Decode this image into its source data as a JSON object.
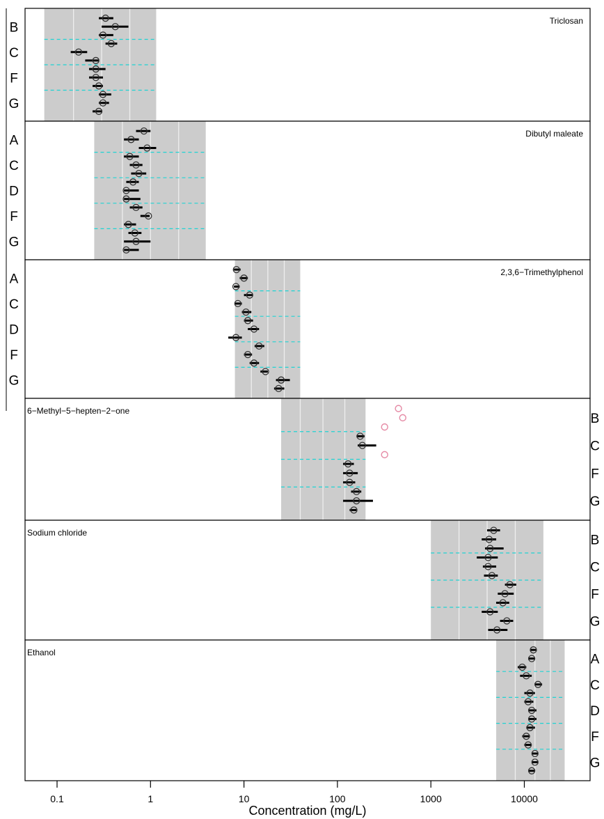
{
  "chart_data": {
    "type": "scatter",
    "x_axis": {
      "label": "Concentration (mg/L)",
      "scale": "log",
      "range": [
        0.035,
        50000
      ],
      "ticks": [
        0.1,
        1,
        10,
        100,
        1000,
        10000
      ],
      "tick_labels": [
        "0.1",
        "1",
        "10",
        "100",
        "1000",
        "10000"
      ]
    },
    "colors": {
      "shade": "#cccccc",
      "dashed_line": "#1fd3d3",
      "point": "#333333",
      "outlier": "#e58aa5",
      "frame": "#000000"
    },
    "panels": [
      {
        "title": "Triclosan",
        "title_position": "top-right",
        "label_side": "left",
        "labels": [
          "B",
          "C",
          "F",
          "G"
        ],
        "shaded_range": [
          0.073,
          1.15
        ],
        "white_lines": [
          0.15,
          0.3,
          0.6
        ],
        "points": [
          {
            "value": 0.33,
            "low": 0.28,
            "high": 0.4
          },
          {
            "value": 0.42,
            "low": 0.3,
            "high": 0.58
          },
          {
            "value": 0.31,
            "low": 0.28,
            "high": 0.4
          },
          {
            "value": 0.38,
            "low": 0.33,
            "high": 0.44
          },
          {
            "value": 0.17,
            "low": 0.14,
            "high": 0.21
          },
          {
            "value": 0.26,
            "low": 0.2,
            "high": 0.28
          },
          {
            "value": 0.26,
            "low": 0.22,
            "high": 0.33
          },
          {
            "value": 0.26,
            "low": 0.22,
            "high": 0.31
          },
          {
            "value": 0.28,
            "low": 0.24,
            "high": 0.31
          },
          {
            "value": 0.31,
            "low": 0.28,
            "high": 0.38
          },
          {
            "value": 0.31,
            "low": 0.28,
            "high": 0.36
          },
          {
            "value": 0.28,
            "low": 0.24,
            "high": 0.3
          }
        ],
        "outliers": []
      },
      {
        "title": "Dibutyl maleate",
        "title_position": "top-right",
        "label_side": "left",
        "labels": [
          "A",
          "C",
          "D",
          "F",
          "G"
        ],
        "shaded_range": [
          0.25,
          3.9
        ],
        "white_lines": [
          0.5,
          1.0,
          2.0
        ],
        "points": [
          {
            "value": 0.85,
            "low": 0.7,
            "high": 1.0
          },
          {
            "value": 0.62,
            "low": 0.52,
            "high": 0.75
          },
          {
            "value": 0.92,
            "low": 0.75,
            "high": 1.15
          },
          {
            "value": 0.6,
            "low": 0.52,
            "high": 0.75
          },
          {
            "value": 0.7,
            "low": 0.6,
            "high": 0.82
          },
          {
            "value": 0.75,
            "low": 0.62,
            "high": 0.9
          },
          {
            "value": 0.65,
            "low": 0.55,
            "high": 0.75
          },
          {
            "value": 0.55,
            "low": 0.52,
            "high": 0.75
          },
          {
            "value": 0.55,
            "low": 0.52,
            "high": 0.78
          },
          {
            "value": 0.7,
            "low": 0.6,
            "high": 0.82
          },
          {
            "value": 0.95,
            "low": 0.78,
            "high": 0.98
          },
          {
            "value": 0.58,
            "low": 0.52,
            "high": 0.7
          },
          {
            "value": 0.68,
            "low": 0.58,
            "high": 0.8
          },
          {
            "value": 0.7,
            "low": 0.52,
            "high": 1.0
          },
          {
            "value": 0.55,
            "low": 0.52,
            "high": 0.75
          }
        ],
        "outliers": []
      },
      {
        "title": "2,3,6−Trimethylphenol",
        "title_position": "top-right",
        "label_side": "left",
        "labels": [
          "A",
          "C",
          "D",
          "F",
          "G"
        ],
        "shaded_range": [
          8.0,
          40.0
        ],
        "white_lines": [
          12.0,
          18.0,
          27.0
        ],
        "points": [
          {
            "value": 8.3,
            "low": 7.8,
            "high": 9.2
          },
          {
            "value": 10.0,
            "low": 9.0,
            "high": 11.0
          },
          {
            "value": 8.2,
            "low": 7.8,
            "high": 9.0
          },
          {
            "value": 11.5,
            "low": 10.0,
            "high": 12.5
          },
          {
            "value": 8.6,
            "low": 8.0,
            "high": 9.5
          },
          {
            "value": 10.5,
            "low": 9.5,
            "high": 12.0
          },
          {
            "value": 11.0,
            "low": 10.0,
            "high": 12.5
          },
          {
            "value": 12.8,
            "low": 11.0,
            "high": 14.5
          },
          {
            "value": 8.2,
            "low": 6.8,
            "high": 9.5
          },
          {
            "value": 14.5,
            "low": 13.0,
            "high": 16.5
          },
          {
            "value": 11.0,
            "low": 10.0,
            "high": 12.2
          },
          {
            "value": 12.8,
            "low": 11.5,
            "high": 14.5
          },
          {
            "value": 17.0,
            "low": 15.0,
            "high": 18.0
          },
          {
            "value": 25.0,
            "low": 22.0,
            "high": 31.0
          },
          {
            "value": 23.5,
            "low": 21.0,
            "high": 27.0
          }
        ],
        "outliers": []
      },
      {
        "title": "6−Methyl−5−hepten−2−one",
        "title_position": "top-left",
        "label_side": "right",
        "labels": [
          "B",
          "C",
          "F",
          "G"
        ],
        "shaded_range": [
          25.0,
          200.0
        ],
        "white_lines": [
          40.0,
          70.0,
          120.0
        ],
        "points": [
          {
            "value": 450,
            "low": 450,
            "high": 450,
            "outlier": true
          },
          {
            "value": 500,
            "low": 500,
            "high": 500,
            "outlier": true
          },
          {
            "value": 320,
            "low": 320,
            "high": 320,
            "outlier": true
          },
          {
            "value": 175,
            "low": 160,
            "high": 195
          },
          {
            "value": 185,
            "low": 165,
            "high": 260
          },
          {
            "value": 320,
            "low": 320,
            "high": 320,
            "outlier": true
          },
          {
            "value": 130,
            "low": 115,
            "high": 150
          },
          {
            "value": 135,
            "low": 115,
            "high": 165
          },
          {
            "value": 135,
            "low": 115,
            "high": 155
          },
          {
            "value": 160,
            "low": 140,
            "high": 180
          },
          {
            "value": 160,
            "low": 115,
            "high": 240
          },
          {
            "value": 150,
            "low": 135,
            "high": 160
          }
        ],
        "outliers": [
          450,
          500,
          320,
          320
        ]
      },
      {
        "title": "Sodium chloride",
        "title_position": "top-left",
        "label_side": "right",
        "labels": [
          "B",
          "C",
          "F",
          "G"
        ],
        "shaded_range": [
          1000,
          16000
        ],
        "white_lines": [
          2000,
          4000,
          8000
        ],
        "points": [
          {
            "value": 4700,
            "low": 4000,
            "high": 5500
          },
          {
            "value": 4200,
            "low": 3500,
            "high": 5000
          },
          {
            "value": 4300,
            "low": 3800,
            "high": 6000
          },
          {
            "value": 4100,
            "low": 3100,
            "high": 5200
          },
          {
            "value": 4100,
            "low": 3600,
            "high": 5000
          },
          {
            "value": 4500,
            "low": 3700,
            "high": 5200
          },
          {
            "value": 7000,
            "low": 6200,
            "high": 8200
          },
          {
            "value": 6200,
            "low": 5200,
            "high": 7700
          },
          {
            "value": 5900,
            "low": 5000,
            "high": 6900
          },
          {
            "value": 4300,
            "low": 3500,
            "high": 5200
          },
          {
            "value": 6500,
            "low": 5500,
            "high": 7600
          },
          {
            "value": 5100,
            "low": 4100,
            "high": 6600
          }
        ],
        "outliers": []
      },
      {
        "title": "Ethanol",
        "title_position": "top-left",
        "label_side": "right",
        "labels": [
          "A",
          "C",
          "D",
          "F",
          "G"
        ],
        "shaded_range": [
          5000,
          27000
        ],
        "white_lines": [
          8000,
          13000,
          19000
        ],
        "points": [
          {
            "value": 12500,
            "low": 11500,
            "high": 13500
          },
          {
            "value": 12000,
            "low": 11000,
            "high": 13000
          },
          {
            "value": 9500,
            "low": 8500,
            "high": 10500
          },
          {
            "value": 10500,
            "low": 9000,
            "high": 12000
          },
          {
            "value": 14000,
            "low": 13000,
            "high": 15500
          },
          {
            "value": 11500,
            "low": 10000,
            "high": 13000
          },
          {
            "value": 11000,
            "low": 10000,
            "high": 12500
          },
          {
            "value": 12000,
            "low": 11000,
            "high": 13500
          },
          {
            "value": 12000,
            "low": 11000,
            "high": 13500
          },
          {
            "value": 11500,
            "low": 10500,
            "high": 13000
          },
          {
            "value": 10500,
            "low": 9500,
            "high": 11500
          },
          {
            "value": 11000,
            "low": 10000,
            "high": 12000
          },
          {
            "value": 13000,
            "low": 12000,
            "high": 14000
          },
          {
            "value": 13000,
            "low": 12000,
            "high": 14000
          },
          {
            "value": 12000,
            "low": 11000,
            "high": 13000
          }
        ],
        "outliers": []
      }
    ]
  }
}
